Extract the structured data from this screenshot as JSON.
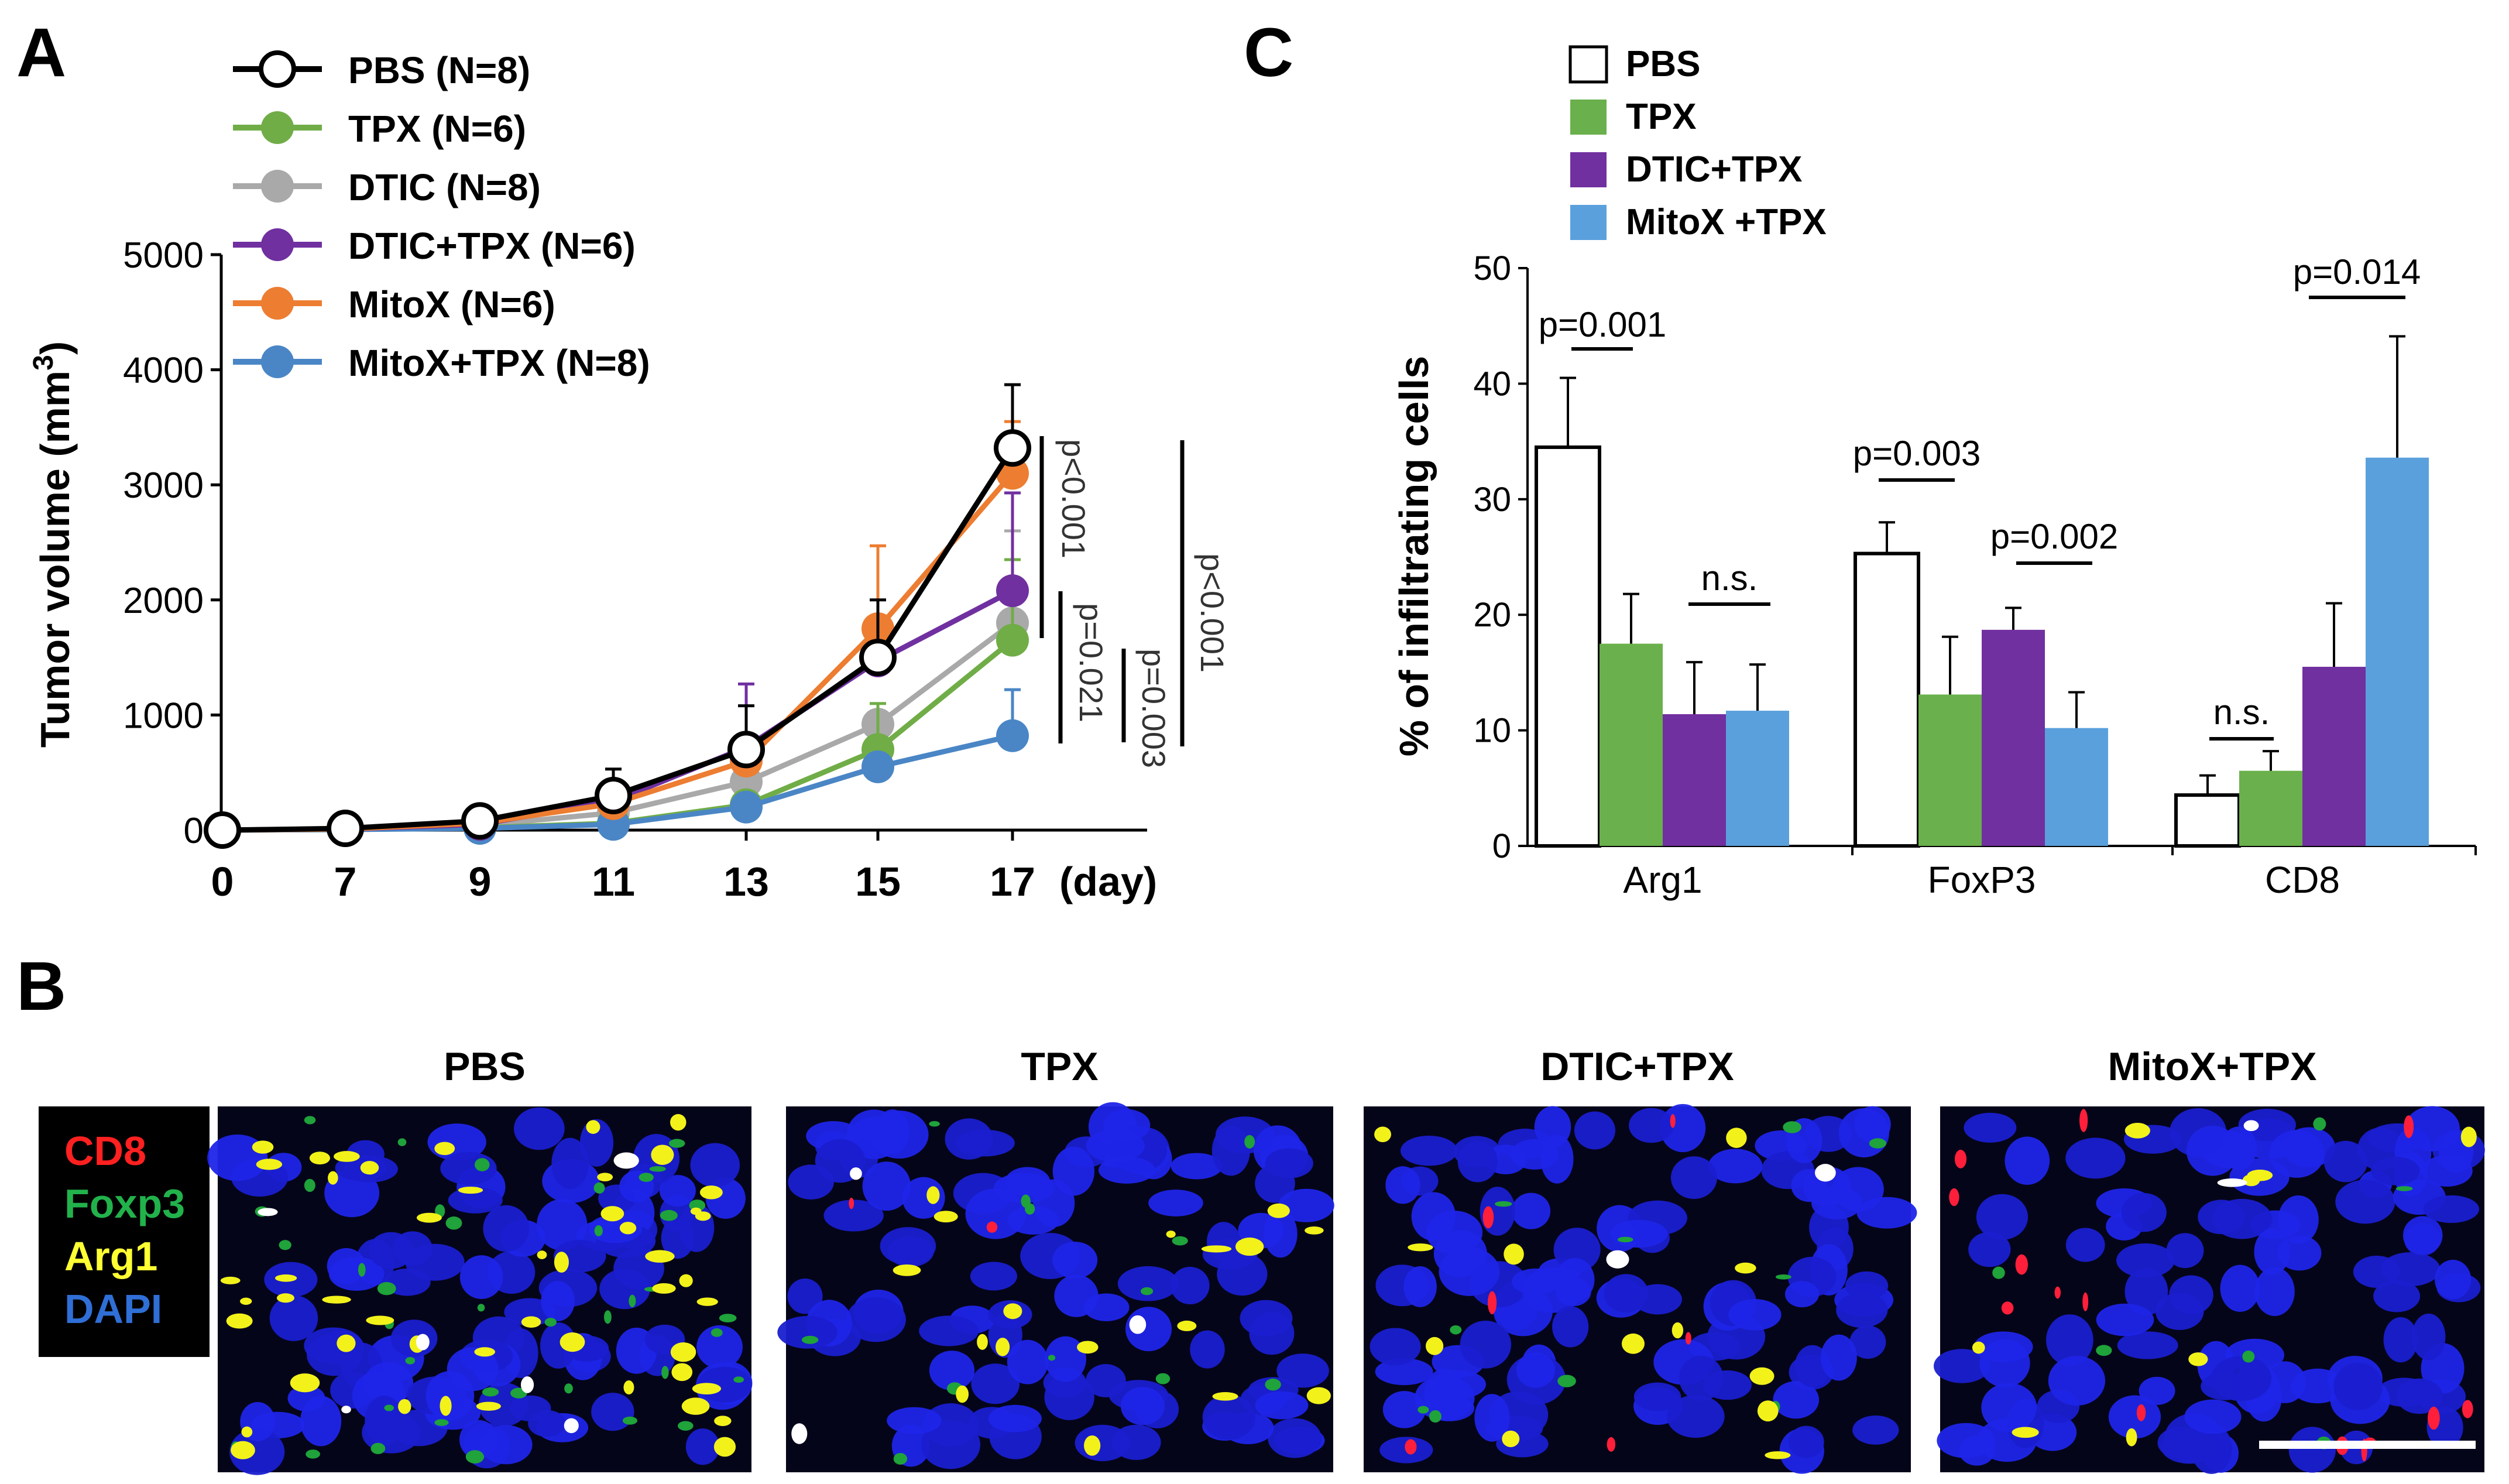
{
  "panels": {
    "a": "A",
    "b": "B",
    "c": "C"
  },
  "chart_data": [
    {
      "panel": "A",
      "type": "line",
      "title": "",
      "xlabel": "(day)",
      "ylabel": "Tumor volume (mm³)",
      "ylabel_main": "Tumor volume (mm",
      "ylabel_sup": "3",
      "ylabel_close": ")",
      "x": [
        "0",
        "7",
        "9",
        "11",
        "13",
        "15",
        "17"
      ],
      "ylim": [
        0,
        5000
      ],
      "yticks": [
        "0",
        "1000",
        "2000",
        "3000",
        "4000",
        "5000"
      ],
      "series": [
        {
          "name": "PBS (N=8)",
          "color": "#000000",
          "hollow": true,
          "values": [
            0,
            15,
            80,
            300,
            700,
            1500,
            3320
          ],
          "errors": [
            0,
            0,
            0,
            230,
            380,
            500,
            550
          ]
        },
        {
          "name": "TPX (N=6)",
          "color": "#70ad47",
          "hollow": false,
          "values": [
            0,
            5,
            20,
            60,
            220,
            700,
            1650
          ],
          "errors": [
            0,
            0,
            0,
            0,
            0,
            400,
            700
          ]
        },
        {
          "name": "DTIC (N=8)",
          "color": "#a9a9a9",
          "hollow": false,
          "values": [
            0,
            5,
            40,
            150,
            420,
            920,
            1800
          ],
          "errors": [
            0,
            0,
            0,
            0,
            0,
            0,
            800
          ]
        },
        {
          "name": "DTIC+TPX (N=6)",
          "color": "#7030a0",
          "hollow": false,
          "values": [
            0,
            10,
            50,
            250,
            720,
            1470,
            2080
          ],
          "errors": [
            0,
            0,
            0,
            0,
            550,
            0,
            850
          ]
        },
        {
          "name": "MitoX (N=6)",
          "color": "#ed7d31",
          "hollow": false,
          "values": [
            0,
            10,
            60,
            230,
            600,
            1750,
            3100
          ],
          "errors": [
            0,
            0,
            0,
            0,
            0,
            720,
            450
          ]
        },
        {
          "name": "MitoX+TPX (N=8)",
          "color": "#4a86c5",
          "hollow": false,
          "values": [
            0,
            5,
            15,
            50,
            200,
            550,
            820
          ],
          "errors": [
            0,
            0,
            0,
            0,
            0,
            0,
            400
          ]
        }
      ],
      "annotations": [
        "p<0.001",
        "p=0.021",
        "p=0.003",
        "p<0.001"
      ]
    },
    {
      "panel": "C",
      "type": "bar",
      "title": "",
      "xlabel": "",
      "ylabel": "% of infiltrating cells",
      "categories": [
        "Arg1",
        "FoxP3",
        "CD8"
      ],
      "ylim": [
        0,
        50
      ],
      "yticks": [
        "0",
        "10",
        "20",
        "30",
        "40",
        "50"
      ],
      "series": [
        {
          "name": "PBS",
          "color": "#ffffff",
          "values": [
            34.5,
            25.3,
            4.4
          ],
          "errors": [
            6,
            2.7,
            1.7
          ]
        },
        {
          "name": "TPX",
          "color": "#6ab04c",
          "values": [
            17.5,
            13.1,
            6.5
          ],
          "errors": [
            4.3,
            5,
            1.7
          ]
        },
        {
          "name": "DTIC+TPX",
          "color": "#7030a0",
          "values": [
            11.4,
            18.7,
            15.5
          ],
          "errors": [
            4.5,
            1.9,
            5.5
          ]
        },
        {
          "name": "MitoX +TPX",
          "color": "#5aa0dc",
          "values": [
            11.7,
            10.2,
            33.6
          ],
          "errors": [
            4,
            3.1,
            10.5
          ]
        }
      ],
      "annotations": [
        "p=0.001",
        "n.s.",
        "p=0.003",
        "p=0.002",
        "n.s.",
        "p=0.014"
      ]
    }
  ],
  "panel_b": {
    "images": [
      "PBS",
      "TPX",
      "DTIC+TPX",
      "MitoX+TPX"
    ],
    "legend": [
      {
        "label": "CD8",
        "color": "#ff2020"
      },
      {
        "label": "Foxp3",
        "color": "#22b24c"
      },
      {
        "label": "Arg1",
        "color": "#ffff33"
      },
      {
        "label": "DAPI",
        "color": "#2f6fd6"
      }
    ]
  }
}
